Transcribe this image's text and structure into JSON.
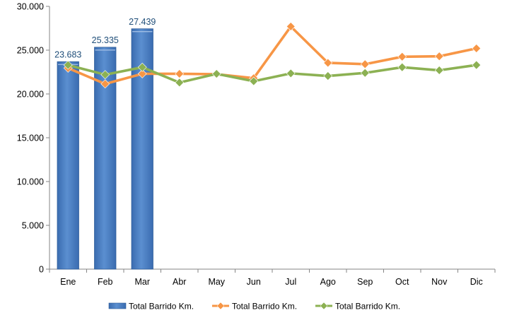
{
  "chart_data": {
    "type": "bar+line",
    "categories": [
      "Ene",
      "Feb",
      "Mar",
      "Abr",
      "May",
      "Jun",
      "Jul",
      "Ago",
      "Sep",
      "Oct",
      "Nov",
      "Dic"
    ],
    "ylim": [
      0,
      30000
    ],
    "yticks": [
      0,
      5000,
      10000,
      15000,
      20000,
      25000,
      30000
    ],
    "ytick_labels": [
      "0",
      "5.000",
      "10.000",
      "15.000",
      "20.000",
      "25.000",
      "30.000"
    ],
    "grid": false,
    "legend_position": "bottom",
    "series": [
      {
        "name": "Total Barrido Km.",
        "type": "bar",
        "color": "#4F81BD",
        "values": [
          23683,
          25335,
          27439,
          null,
          null,
          null,
          null,
          null,
          null,
          null,
          null,
          null
        ],
        "data_labels": [
          "23.683",
          "25.335",
          "27.439"
        ]
      },
      {
        "name": "Total Barrido Km.",
        "type": "line",
        "color": "#F79646",
        "values": [
          22950,
          21150,
          22300,
          22300,
          22250,
          21800,
          27700,
          23550,
          23400,
          24250,
          24300,
          25200
        ]
      },
      {
        "name": "Total Barrido Km.",
        "type": "line",
        "color": "#8CB153",
        "values": [
          23300,
          22200,
          23050,
          21300,
          22300,
          21450,
          22350,
          22050,
          22400,
          23050,
          22700,
          23300
        ]
      }
    ]
  }
}
